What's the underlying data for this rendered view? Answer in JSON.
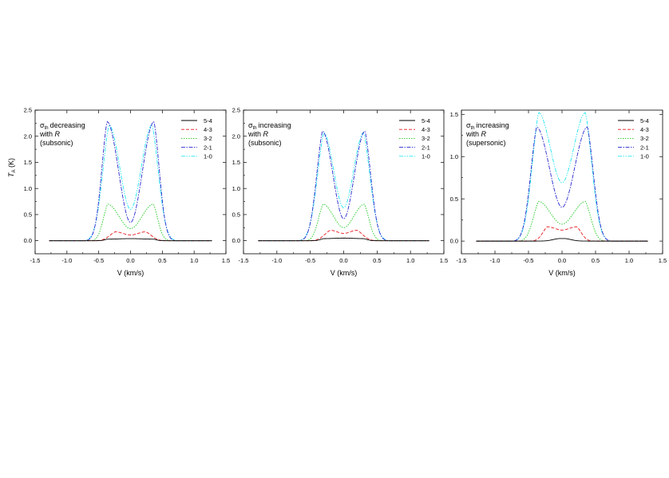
{
  "chart_data": [
    {
      "type": "line",
      "xlabel": "V (km/s)",
      "ylabel": "T_A (K)",
      "ylabel_main": "T",
      "ylabel_sub": "A",
      "ylabel_unit": " (K)",
      "xlim": [
        -1.5,
        1.5
      ],
      "ylim": [
        -0.25,
        2.5
      ],
      "xticks": [
        -1.5,
        -1.0,
        -0.5,
        0.0,
        0.5,
        1.0,
        1.5
      ],
      "xtick_labels": [
        "-1.5",
        "-1.0",
        "-0.5",
        "0.0",
        "0.5",
        "1.0",
        "1.5"
      ],
      "yticks": [
        0.0,
        0.5,
        1.0,
        1.5,
        2.0,
        2.5
      ],
      "ytick_labels": [
        "0.0",
        "0.5",
        "1.0",
        "1.5",
        "2.0",
        "2.5"
      ],
      "annotation": {
        "symbol": "σ",
        "subscript": "th",
        "lines": [
          "decreasing",
          "with ",
          "R",
          "(subsonic)"
        ]
      },
      "legend_position": "top-right",
      "series": [
        {
          "name": "5-4",
          "peaks": [
            -0.36,
            0.36
          ],
          "peak_values": [
            0.03,
            0.03
          ],
          "center_value": 0.04,
          "wing_end": 0.55
        },
        {
          "name": "4-3",
          "peaks": [
            -0.24,
            0.24
          ],
          "peak_values": [
            0.17,
            0.17
          ],
          "center_value": 0.11,
          "wing_end": 0.6
        },
        {
          "name": "3-2",
          "peaks": [
            -0.36,
            0.36
          ],
          "peak_values": [
            0.7,
            0.7
          ],
          "center_value": 0.23,
          "wing_end": 0.65
        },
        {
          "name": "2-1",
          "peaks": [
            -0.37,
            0.37
          ],
          "peak_values": [
            2.28,
            2.28
          ],
          "center_value": 0.35,
          "wing_end": 0.72
        },
        {
          "name": "1-0",
          "peaks": [
            -0.34,
            0.34
          ],
          "peak_values": [
            2.22,
            2.22
          ],
          "center_value": 0.6,
          "wing_end": 0.75
        }
      ]
    },
    {
      "type": "line",
      "xlabel": "V (km/s)",
      "ylabel": "",
      "xlim": [
        -1.5,
        1.5
      ],
      "ylim": [
        -0.25,
        2.5
      ],
      "xticks": [
        -1.5,
        -1.0,
        -0.5,
        0.0,
        0.5,
        1.0,
        1.5
      ],
      "xtick_labels": [
        "-1.5",
        "-1.0",
        "-0.5",
        "0.0",
        "0.5",
        "1.0",
        "1.5"
      ],
      "yticks": [
        0.0,
        0.5,
        1.0,
        1.5,
        2.0,
        2.5
      ],
      "ytick_labels": [
        "0.0",
        "0.5",
        "1.0",
        "1.5",
        "2.0",
        "2.5"
      ],
      "annotation": {
        "symbol": "σ",
        "subscript": "th",
        "lines": [
          "increasing",
          "with ",
          "R",
          "(subsonic)"
        ]
      },
      "legend_position": "top-right",
      "series": [
        {
          "name": "5-4",
          "peaks": [
            -0.3,
            0.3
          ],
          "peak_values": [
            0.04,
            0.04
          ],
          "center_value": 0.05,
          "wing_end": 0.5
        },
        {
          "name": "4-3",
          "peaks": [
            -0.2,
            0.2
          ],
          "peak_values": [
            0.2,
            0.2
          ],
          "center_value": 0.14,
          "wing_end": 0.55
        },
        {
          "name": "3-2",
          "peaks": [
            -0.31,
            0.31
          ],
          "peak_values": [
            0.7,
            0.7
          ],
          "center_value": 0.25,
          "wing_end": 0.6
        },
        {
          "name": "2-1",
          "peaks": [
            -0.32,
            0.32
          ],
          "peak_values": [
            2.1,
            2.1
          ],
          "center_value": 0.42,
          "wing_end": 0.68
        },
        {
          "name": "1-0",
          "peaks": [
            -0.3,
            0.3
          ],
          "peak_values": [
            2.07,
            2.07
          ],
          "center_value": 0.63,
          "wing_end": 0.7
        }
      ]
    },
    {
      "type": "line",
      "xlabel": "V (km/s)",
      "ylabel": "",
      "xlim": [
        -1.5,
        1.5
      ],
      "ylim": [
        -0.15,
        1.55
      ],
      "xticks": [
        -1.5,
        -1.0,
        -0.5,
        0.0,
        0.5,
        1.0,
        1.5
      ],
      "xtick_labels": [
        "-1.5",
        "-1.0",
        "-0.5",
        "0.0",
        "0.5",
        "1.0",
        "1.5"
      ],
      "yticks": [
        0.0,
        0.5,
        1.0,
        1.5
      ],
      "ytick_labels": [
        "0.0",
        "0.5",
        "1.0",
        "1.5"
      ],
      "annotation": {
        "symbol": "σ",
        "subscript": "th",
        "lines": [
          "increasing",
          "with ",
          "R",
          "(supersonic)"
        ]
      },
      "legend_position": "top-right",
      "series": [
        {
          "name": "5-4",
          "peaks": [
            -0.05,
            0.05
          ],
          "peak_values": [
            0.03,
            0.03
          ],
          "center_value": 0.03,
          "wing_end": 0.4
        },
        {
          "name": "4-3",
          "peaks": [
            -0.22,
            0.22
          ],
          "peak_values": [
            0.17,
            0.17
          ],
          "center_value": 0.13,
          "wing_end": 0.5
        },
        {
          "name": "3-2",
          "peaks": [
            -0.35,
            0.35
          ],
          "peak_values": [
            0.47,
            0.47
          ],
          "center_value": 0.2,
          "wing_end": 0.68
        },
        {
          "name": "2-1",
          "peaks": [
            -0.38,
            0.38
          ],
          "peak_values": [
            1.35,
            1.35
          ],
          "center_value": 0.4,
          "wing_end": 0.75
        },
        {
          "name": "1-0",
          "peaks": [
            -0.35,
            0.35
          ],
          "peak_values": [
            1.52,
            1.52
          ],
          "center_value": 0.69,
          "wing_end": 0.75
        }
      ]
    }
  ],
  "styles": {
    "5-4": {
      "color": "#000000",
      "dash": ""
    },
    "4-3": {
      "color": "#e8181e",
      "dash": "4,2"
    },
    "3-2": {
      "color": "#1ec81e",
      "dash": "1.5,1.5"
    },
    "2-1": {
      "color": "#2828d0",
      "dash": "5,1.5,1.5,1.5"
    },
    "1-0": {
      "color": "#22e6f0",
      "dash": "5,1.5,1.5,1.5,1.5,1.5"
    }
  }
}
